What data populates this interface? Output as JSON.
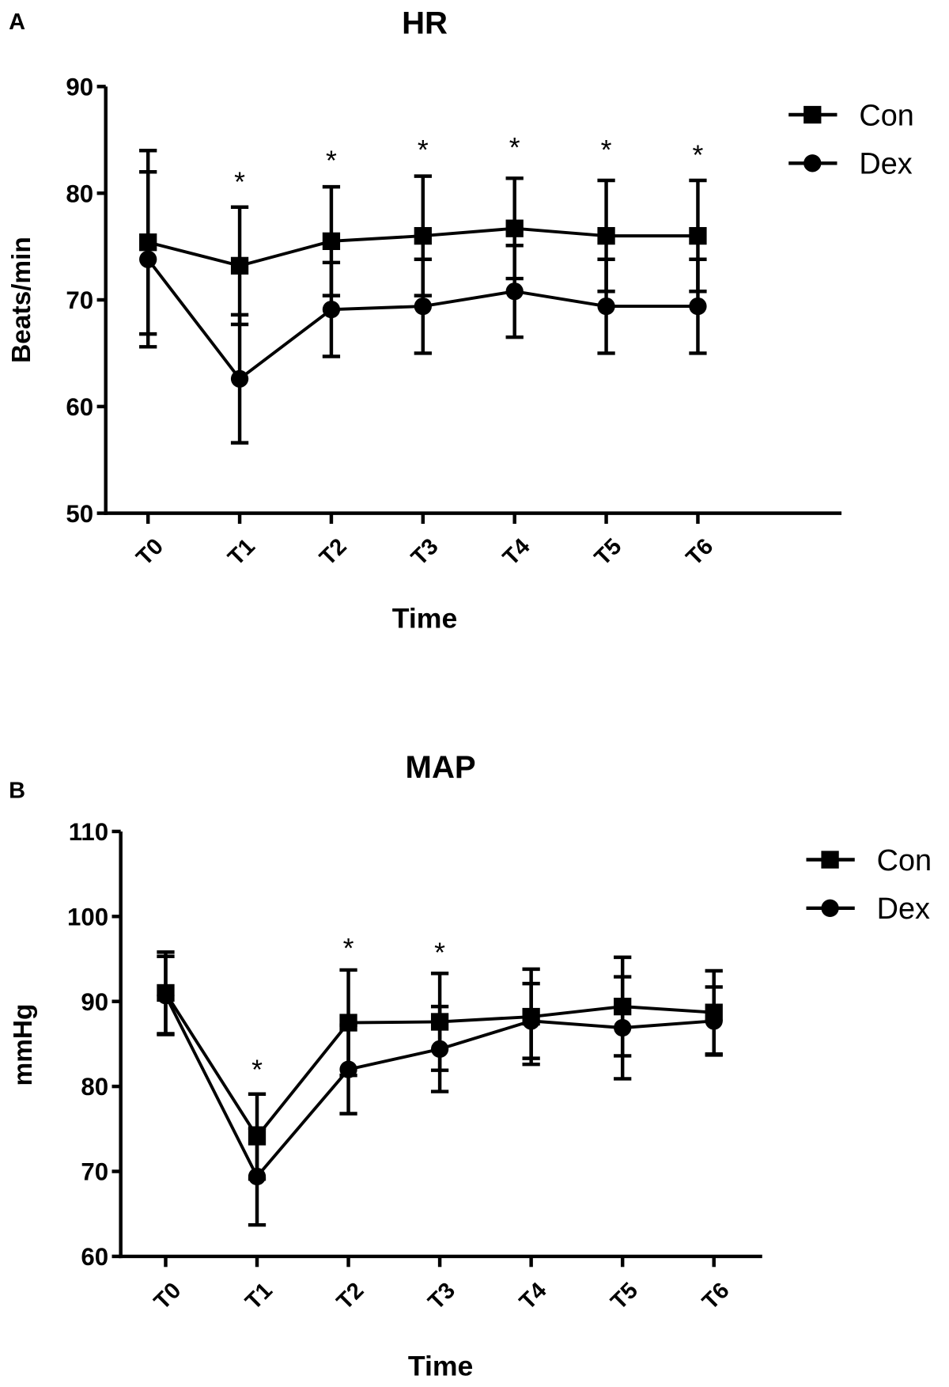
{
  "chart_data": [
    {
      "type": "line",
      "panel_label": "A",
      "title": "HR",
      "xlabel": "Time",
      "ylabel": "Beats/min",
      "categories": [
        "T0",
        "T1",
        "T2",
        "T3",
        "T4",
        "T5",
        "T6"
      ],
      "ylim": [
        50,
        90
      ],
      "yticks": [
        50,
        60,
        70,
        80,
        90
      ],
      "grid": false,
      "legend_position": "top-right",
      "error_bars": "mean ± SD",
      "series": [
        {
          "name": "Con",
          "marker": "square",
          "values": [
            75.4,
            73.2,
            75.5,
            76.0,
            76.7,
            76.0,
            76.0
          ],
          "errors": [
            8.6,
            5.5,
            5.1,
            5.6,
            4.7,
            5.2,
            5.2
          ]
        },
        {
          "name": "Dex",
          "marker": "circle",
          "values": [
            73.8,
            62.6,
            69.1,
            69.4,
            70.8,
            69.4,
            69.4
          ],
          "errors": [
            8.2,
            6.0,
            4.4,
            4.4,
            4.3,
            4.4,
            4.4
          ]
        }
      ],
      "significance": {
        "symbol": "*",
        "categories": [
          "T1",
          "T2",
          "T3",
          "T4",
          "T5",
          "T6"
        ],
        "y_values": [
          81.5,
          83.5,
          84.5,
          84.7,
          84.5,
          84.0
        ]
      }
    },
    {
      "type": "line",
      "panel_label": "B",
      "title": "MAP",
      "xlabel": "Time",
      "ylabel": "mmHg",
      "categories": [
        "T0",
        "T1",
        "T2",
        "T3",
        "T4",
        "T5",
        "T6"
      ],
      "ylim": [
        60,
        110
      ],
      "yticks": [
        60,
        70,
        80,
        90,
        100,
        110
      ],
      "grid": false,
      "legend_position": "top-right",
      "error_bars": "mean ± SD",
      "series": [
        {
          "name": "Con",
          "marker": "square",
          "values": [
            91.0,
            74.1,
            87.5,
            87.6,
            88.2,
            89.4,
            88.7
          ],
          "errors": [
            4.8,
            5.0,
            6.2,
            5.7,
            5.6,
            5.8,
            4.9
          ]
        },
        {
          "name": "Dex",
          "marker": "circle",
          "values": [
            90.7,
            69.4,
            82.0,
            84.4,
            87.7,
            86.9,
            87.7
          ],
          "errors": [
            4.6,
            5.7,
            5.2,
            5.0,
            4.4,
            6.0,
            4.0
          ]
        }
      ],
      "significance": {
        "symbol": "*",
        "categories": [
          "T1",
          "T2",
          "T3"
        ],
        "y_values": [
          82.5,
          96.8,
          96.3
        ]
      }
    }
  ]
}
